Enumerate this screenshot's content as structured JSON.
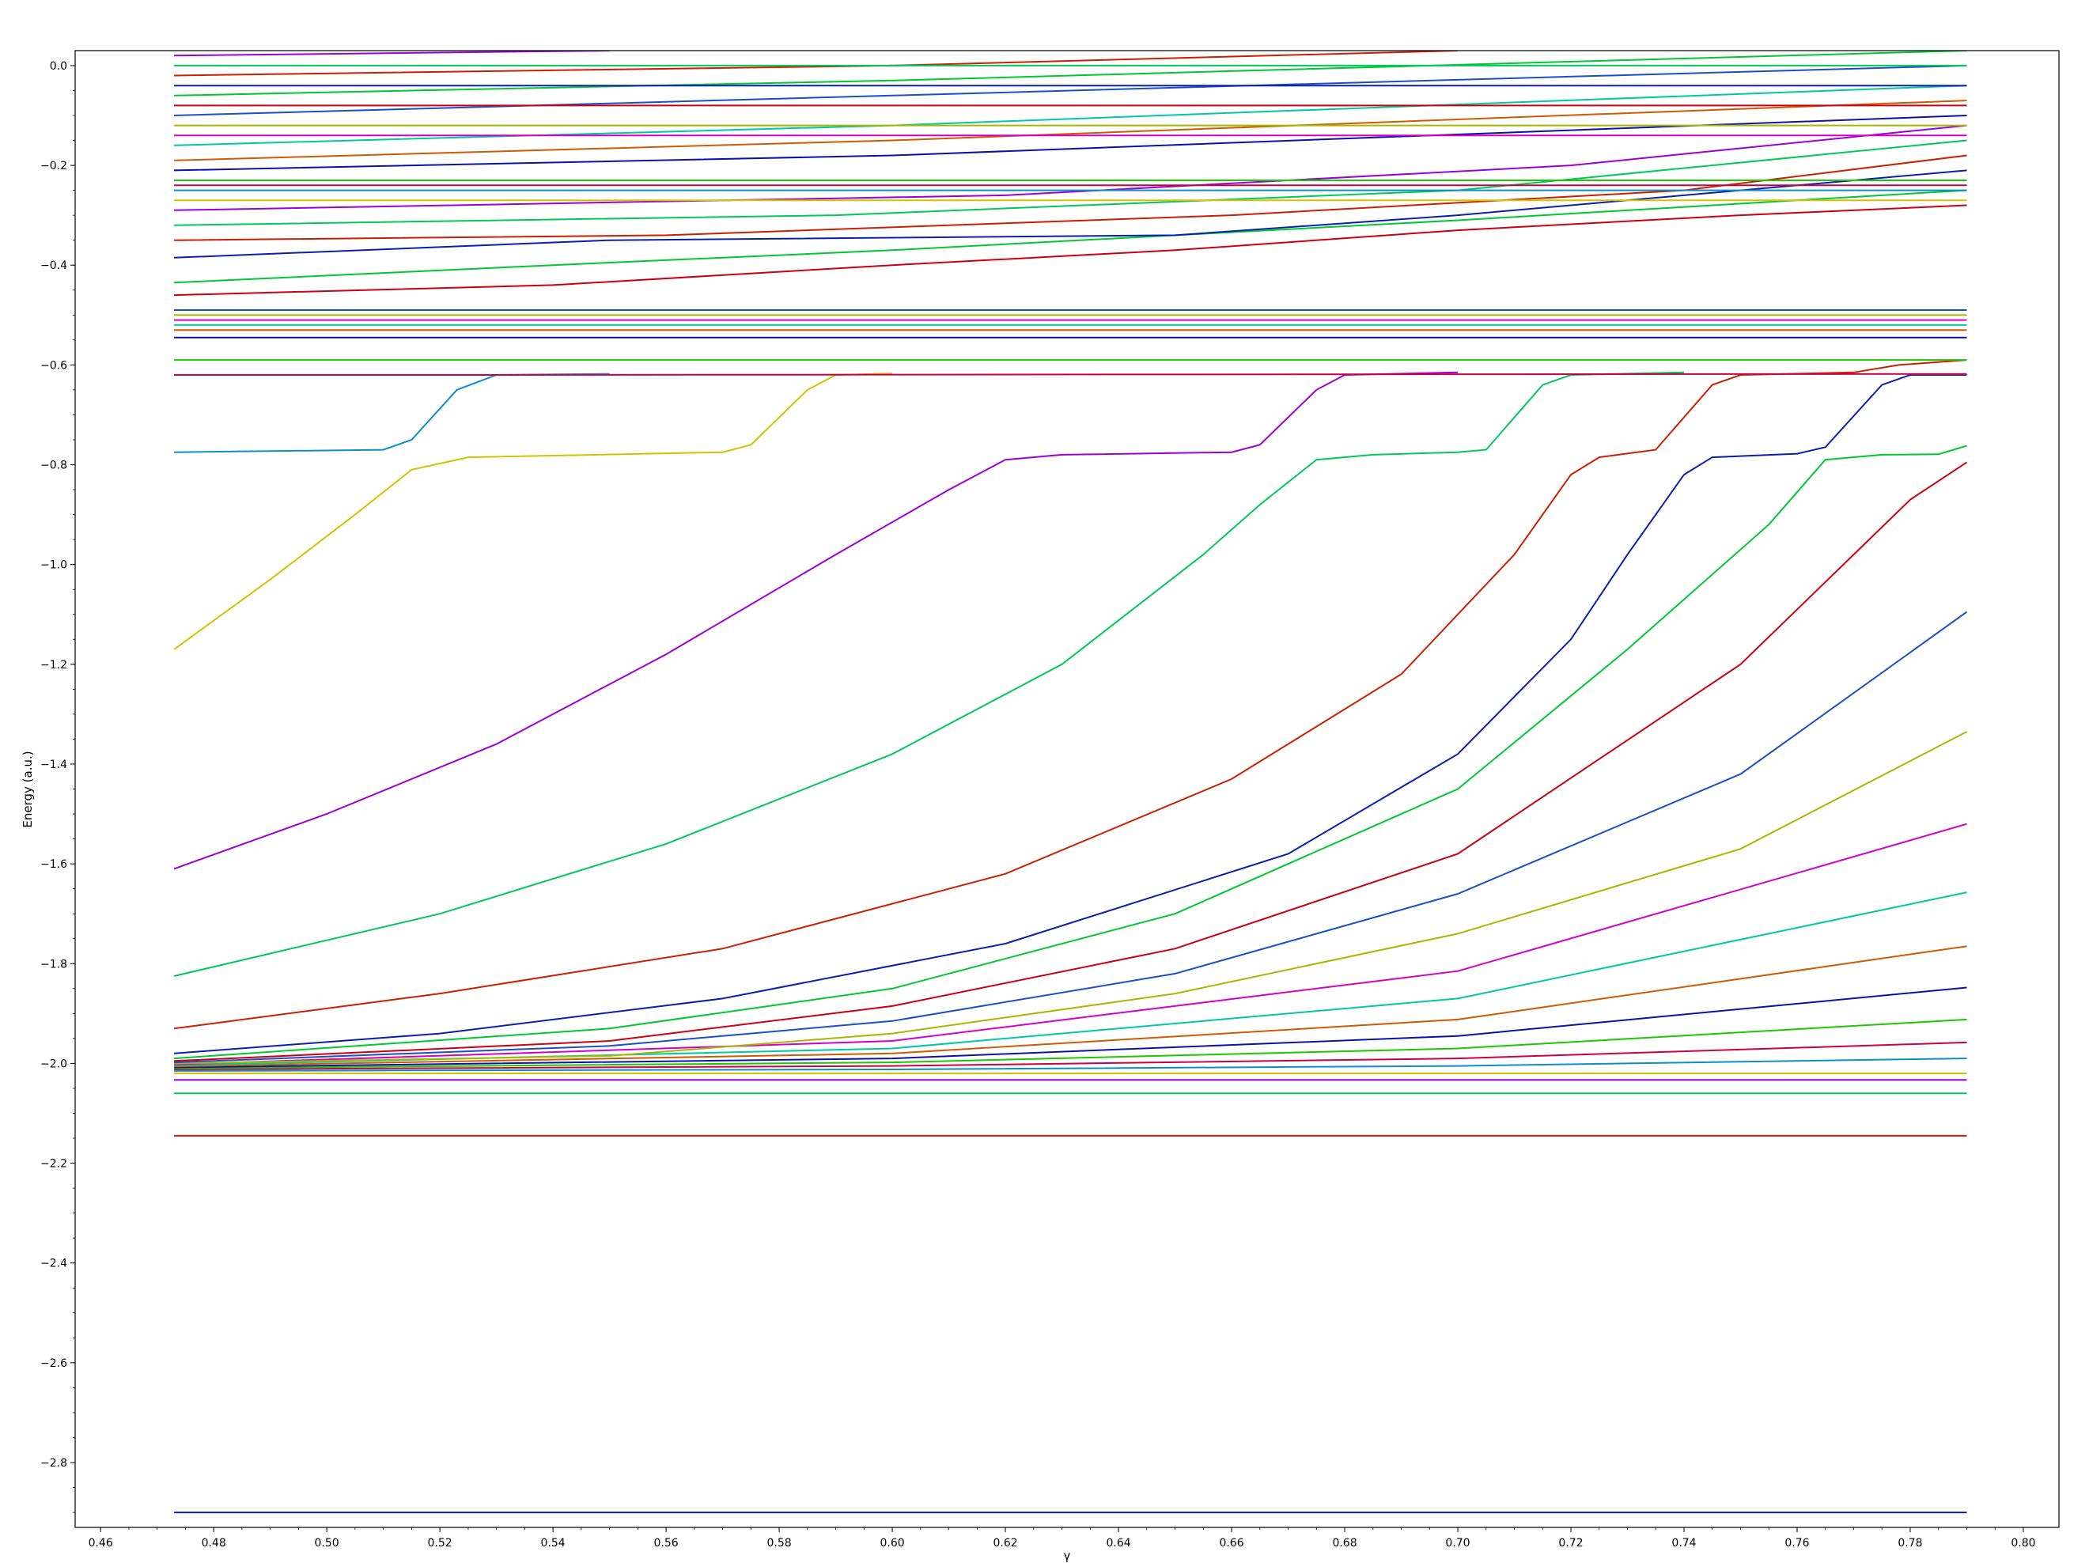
{
  "chart_data": {
    "type": "line",
    "title": "",
    "xlabel": "γ",
    "ylabel": "Energy (a.u.)",
    "xlim": [
      0.4555,
      0.8063
    ],
    "ylim": [
      -2.93,
      0.03
    ],
    "grid": false,
    "legend": "none",
    "x_ticks": [
      "0.46",
      "0.48",
      "0.50",
      "0.52",
      "0.54",
      "0.56",
      "0.58",
      "0.60",
      "0.62",
      "0.64",
      "0.66",
      "0.68",
      "0.70",
      "0.72",
      "0.74",
      "0.76",
      "0.78",
      "0.80"
    ],
    "y_ticks": [
      "0.0",
      "−0.2",
      "−0.4",
      "−0.6",
      "−0.8",
      "−1.0",
      "−1.2",
      "−1.4",
      "−1.6",
      "−1.8",
      "−2.0",
      "−2.2",
      "−2.4",
      "−2.6",
      "−2.8"
    ],
    "x_range_of_data": [
      0.473,
      0.79
    ],
    "palette": [
      "#0a1fb0",
      "#cc1f00",
      "#00c95a",
      "#9b00d9",
      "#d4c200",
      "#0a8fc9",
      "#cc0044",
      "#1ec800",
      "#0a12a8",
      "#d15a00",
      "#00c9a0",
      "#d400c8",
      "#a8b800",
      "#1a4fc9",
      "#cc0011",
      "#00c832"
    ],
    "series": [
      {
        "label_e": -2.9,
        "points": [
          [
            0.473,
            -2.9
          ],
          [
            0.79,
            -2.9
          ]
        ]
      },
      {
        "label_e": -2.145,
        "points": [
          [
            0.473,
            -2.145
          ],
          [
            0.79,
            -2.145
          ]
        ]
      },
      {
        "label_e": -2.06,
        "points": [
          [
            0.473,
            -2.06
          ],
          [
            0.79,
            -2.06
          ]
        ]
      },
      {
        "points": [
          [
            0.473,
            -2.033
          ],
          [
            0.79,
            -2.033
          ]
        ]
      },
      {
        "points": [
          [
            0.473,
            -2.02
          ],
          [
            0.79,
            -2.02
          ]
        ]
      },
      {
        "points": [
          [
            0.473,
            -2.015
          ],
          [
            0.6,
            -2.012
          ],
          [
            0.7,
            -2.005
          ],
          [
            0.79,
            -1.99
          ]
        ]
      },
      {
        "points": [
          [
            0.473,
            -2.012
          ],
          [
            0.6,
            -2.005
          ],
          [
            0.7,
            -1.99
          ],
          [
            0.79,
            -1.958
          ]
        ]
      },
      {
        "points": [
          [
            0.473,
            -2.01
          ],
          [
            0.6,
            -1.998
          ],
          [
            0.7,
            -1.97
          ],
          [
            0.79,
            -1.912
          ]
        ]
      },
      {
        "points": [
          [
            0.473,
            -2.008
          ],
          [
            0.6,
            -1.99
          ],
          [
            0.7,
            -1.945
          ],
          [
            0.79,
            -1.848
          ]
        ]
      },
      {
        "points": [
          [
            0.473,
            -2.006
          ],
          [
            0.6,
            -1.98
          ],
          [
            0.7,
            -1.912
          ],
          [
            0.79,
            -1.765
          ]
        ]
      },
      {
        "points": [
          [
            0.473,
            -2.004
          ],
          [
            0.6,
            -1.97
          ],
          [
            0.7,
            -1.87
          ],
          [
            0.79,
            -1.657
          ]
        ]
      },
      {
        "points": [
          [
            0.473,
            -2.002
          ],
          [
            0.6,
            -1.955
          ],
          [
            0.7,
            -1.815
          ],
          [
            0.79,
            -1.52
          ]
        ]
      },
      {
        "points": [
          [
            0.473,
            -2.0
          ],
          [
            0.55,
            -1.985
          ],
          [
            0.6,
            -1.94
          ],
          [
            0.65,
            -1.86
          ],
          [
            0.7,
            -1.74
          ],
          [
            0.75,
            -1.57
          ],
          [
            0.79,
            -1.335
          ]
        ]
      },
      {
        "points": [
          [
            0.473,
            -1.998
          ],
          [
            0.55,
            -1.965
          ],
          [
            0.6,
            -1.915
          ],
          [
            0.65,
            -1.82
          ],
          [
            0.7,
            -1.66
          ],
          [
            0.75,
            -1.42
          ],
          [
            0.79,
            -1.095
          ]
        ]
      },
      {
        "points": [
          [
            0.473,
            -1.995
          ],
          [
            0.55,
            -1.955
          ],
          [
            0.6,
            -1.885
          ],
          [
            0.65,
            -1.77
          ],
          [
            0.7,
            -1.58
          ],
          [
            0.75,
            -1.2
          ],
          [
            0.77,
            -0.98
          ],
          [
            0.78,
            -0.87
          ],
          [
            0.79,
            -0.795
          ]
        ]
      },
      {
        "points": [
          [
            0.473,
            -1.99
          ],
          [
            0.55,
            -1.93
          ],
          [
            0.6,
            -1.85
          ],
          [
            0.65,
            -1.7
          ],
          [
            0.7,
            -1.45
          ],
          [
            0.73,
            -1.17
          ],
          [
            0.755,
            -0.92
          ],
          [
            0.765,
            -0.79
          ],
          [
            0.775,
            -0.78
          ],
          [
            0.785,
            -0.779
          ],
          [
            0.79,
            -0.762
          ]
        ]
      },
      {
        "points": [
          [
            0.473,
            -1.98
          ],
          [
            0.52,
            -1.94
          ],
          [
            0.57,
            -1.87
          ],
          [
            0.62,
            -1.76
          ],
          [
            0.67,
            -1.58
          ],
          [
            0.7,
            -1.38
          ],
          [
            0.72,
            -1.15
          ],
          [
            0.73,
            -0.98
          ],
          [
            0.74,
            -0.82
          ],
          [
            0.745,
            -0.785
          ],
          [
            0.76,
            -0.778
          ],
          [
            0.765,
            -0.765
          ],
          [
            0.775,
            -0.64
          ],
          [
            0.78,
            -0.62
          ],
          [
            0.79,
            -0.62
          ]
        ]
      },
      {
        "points": [
          [
            0.473,
            -1.93
          ],
          [
            0.52,
            -1.86
          ],
          [
            0.57,
            -1.77
          ],
          [
            0.62,
            -1.62
          ],
          [
            0.66,
            -1.43
          ],
          [
            0.69,
            -1.22
          ],
          [
            0.71,
            -0.98
          ],
          [
            0.72,
            -0.82
          ],
          [
            0.725,
            -0.785
          ],
          [
            0.735,
            -0.77
          ],
          [
            0.745,
            -0.64
          ],
          [
            0.75,
            -0.62
          ],
          [
            0.77,
            -0.615
          ],
          [
            0.778,
            -0.6
          ],
          [
            0.79,
            -0.59
          ]
        ]
      },
      {
        "points": [
          [
            0.473,
            -1.825
          ],
          [
            0.52,
            -1.7
          ],
          [
            0.56,
            -1.56
          ],
          [
            0.6,
            -1.38
          ],
          [
            0.63,
            -1.2
          ],
          [
            0.655,
            -0.98
          ],
          [
            0.665,
            -0.88
          ],
          [
            0.675,
            -0.79
          ],
          [
            0.685,
            -0.78
          ],
          [
            0.7,
            -0.775
          ],
          [
            0.705,
            -0.77
          ],
          [
            0.715,
            -0.64
          ],
          [
            0.72,
            -0.62
          ],
          [
            0.74,
            -0.615
          ]
        ]
      },
      {
        "points": [
          [
            0.473,
            -1.61
          ],
          [
            0.5,
            -1.5
          ],
          [
            0.53,
            -1.36
          ],
          [
            0.56,
            -1.18
          ],
          [
            0.59,
            -0.98
          ],
          [
            0.61,
            -0.85
          ],
          [
            0.62,
            -0.79
          ],
          [
            0.63,
            -0.78
          ],
          [
            0.66,
            -0.775
          ],
          [
            0.665,
            -0.76
          ],
          [
            0.675,
            -0.65
          ],
          [
            0.68,
            -0.62
          ],
          [
            0.7,
            -0.615
          ]
        ]
      },
      {
        "points": [
          [
            0.473,
            -1.17
          ],
          [
            0.49,
            -1.03
          ],
          [
            0.505,
            -0.9
          ],
          [
            0.515,
            -0.81
          ],
          [
            0.525,
            -0.785
          ],
          [
            0.57,
            -0.775
          ],
          [
            0.575,
            -0.76
          ],
          [
            0.585,
            -0.65
          ],
          [
            0.59,
            -0.62
          ],
          [
            0.6,
            -0.617
          ]
        ]
      },
      {
        "points": [
          [
            0.473,
            -0.775
          ],
          [
            0.51,
            -0.77
          ],
          [
            0.515,
            -0.75
          ],
          [
            0.523,
            -0.65
          ],
          [
            0.53,
            -0.62
          ],
          [
            0.55,
            -0.618
          ]
        ]
      },
      {
        "points": [
          [
            0.473,
            -0.62
          ],
          [
            0.52,
            -0.62
          ],
          [
            0.79,
            -0.618
          ]
        ]
      },
      {
        "points": [
          [
            0.473,
            -0.59
          ],
          [
            0.79,
            -0.59
          ]
        ]
      },
      {
        "points": [
          [
            0.473,
            -0.545
          ],
          [
            0.79,
            -0.545
          ]
        ]
      },
      {
        "points": [
          [
            0.473,
            -0.53
          ],
          [
            0.79,
            -0.53
          ]
        ]
      },
      {
        "points": [
          [
            0.473,
            -0.52
          ],
          [
            0.79,
            -0.52
          ]
        ]
      },
      {
        "points": [
          [
            0.473,
            -0.51
          ],
          [
            0.79,
            -0.51
          ]
        ]
      },
      {
        "points": [
          [
            0.473,
            -0.5
          ],
          [
            0.79,
            -0.5
          ]
        ]
      },
      {
        "points": [
          [
            0.473,
            -0.49
          ],
          [
            0.79,
            -0.49
          ]
        ]
      },
      {
        "points": [
          [
            0.473,
            -0.46
          ],
          [
            0.54,
            -0.44
          ],
          [
            0.6,
            -0.4
          ],
          [
            0.65,
            -0.37
          ],
          [
            0.7,
            -0.33
          ],
          [
            0.75,
            -0.3
          ],
          [
            0.79,
            -0.28
          ]
        ]
      },
      {
        "points": [
          [
            0.473,
            -0.435
          ],
          [
            0.54,
            -0.4
          ],
          [
            0.6,
            -0.37
          ],
          [
            0.65,
            -0.34
          ],
          [
            0.7,
            -0.31
          ],
          [
            0.79,
            -0.25
          ]
        ]
      },
      {
        "points": [
          [
            0.473,
            -0.385
          ],
          [
            0.55,
            -0.35
          ],
          [
            0.65,
            -0.34
          ],
          [
            0.7,
            -0.3
          ],
          [
            0.79,
            -0.21
          ]
        ]
      },
      {
        "points": [
          [
            0.473,
            -0.35
          ],
          [
            0.56,
            -0.34
          ],
          [
            0.66,
            -0.3
          ],
          [
            0.74,
            -0.25
          ],
          [
            0.79,
            -0.18
          ]
        ]
      },
      {
        "points": [
          [
            0.473,
            -0.32
          ],
          [
            0.59,
            -0.3
          ],
          [
            0.7,
            -0.25
          ],
          [
            0.79,
            -0.15
          ]
        ]
      },
      {
        "points": [
          [
            0.473,
            -0.29
          ],
          [
            0.62,
            -0.26
          ],
          [
            0.72,
            -0.2
          ],
          [
            0.79,
            -0.12
          ]
        ]
      },
      {
        "points": [
          [
            0.473,
            -0.27
          ],
          [
            0.79,
            -0.27
          ]
        ]
      },
      {
        "points": [
          [
            0.473,
            -0.25
          ],
          [
            0.79,
            -0.25
          ]
        ]
      },
      {
        "points": [
          [
            0.473,
            -0.24
          ],
          [
            0.79,
            -0.24
          ]
        ]
      },
      {
        "points": [
          [
            0.473,
            -0.23
          ],
          [
            0.79,
            -0.23
          ]
        ]
      },
      {
        "points": [
          [
            0.473,
            -0.21
          ],
          [
            0.6,
            -0.18
          ],
          [
            0.79,
            -0.1
          ]
        ]
      },
      {
        "points": [
          [
            0.473,
            -0.19
          ],
          [
            0.6,
            -0.15
          ],
          [
            0.79,
            -0.07
          ]
        ]
      },
      {
        "points": [
          [
            0.473,
            -0.16
          ],
          [
            0.6,
            -0.12
          ],
          [
            0.79,
            -0.04
          ]
        ]
      },
      {
        "points": [
          [
            0.473,
            -0.14
          ],
          [
            0.79,
            -0.14
          ]
        ]
      },
      {
        "points": [
          [
            0.473,
            -0.12
          ],
          [
            0.79,
            -0.12
          ]
        ]
      },
      {
        "points": [
          [
            0.473,
            -0.1
          ],
          [
            0.6,
            -0.06
          ],
          [
            0.79,
            0.0
          ]
        ]
      },
      {
        "points": [
          [
            0.473,
            -0.08
          ],
          [
            0.79,
            -0.08
          ]
        ]
      },
      {
        "points": [
          [
            0.473,
            -0.06
          ],
          [
            0.6,
            -0.03
          ],
          [
            0.79,
            0.03
          ]
        ]
      },
      {
        "points": [
          [
            0.473,
            -0.04
          ],
          [
            0.79,
            -0.04
          ]
        ]
      },
      {
        "points": [
          [
            0.473,
            -0.02
          ],
          [
            0.6,
            0.0
          ],
          [
            0.7,
            0.03
          ]
        ]
      },
      {
        "points": [
          [
            0.473,
            0.0
          ],
          [
            0.79,
            0.0
          ]
        ]
      },
      {
        "points": [
          [
            0.473,
            0.02
          ],
          [
            0.55,
            0.03
          ]
        ]
      }
    ]
  }
}
